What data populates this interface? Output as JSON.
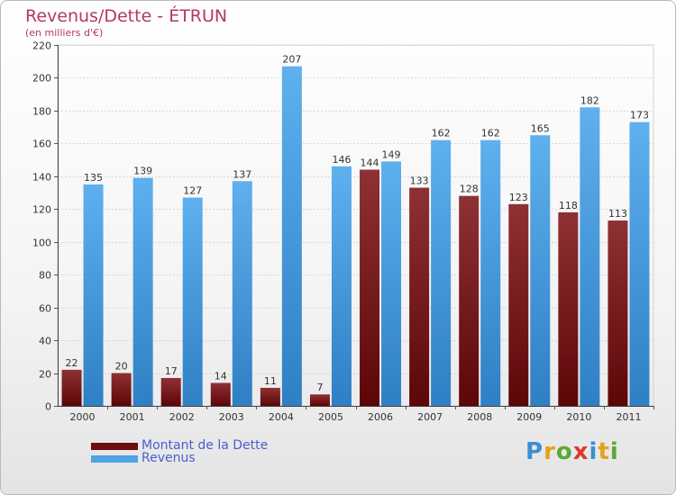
{
  "header": {
    "title": "Revenus/Dette - ÉTRUN",
    "subtitle": "(en milliers d'€)"
  },
  "legend": [
    {
      "label": "Montant de la Dette",
      "color": "#7a1416"
    },
    {
      "label": "Revenus",
      "color": "#4ea4e4"
    }
  ],
  "logo": {
    "letters": [
      "P",
      "r",
      "o",
      "x",
      "i",
      "t",
      "i"
    ]
  },
  "chart_data": {
    "type": "bar",
    "categories": [
      "2000",
      "2001",
      "2002",
      "2003",
      "2004",
      "2005",
      "2006",
      "2007",
      "2008",
      "2009",
      "2010",
      "2011"
    ],
    "series": [
      {
        "name": "Montant de la Dette",
        "color": "#7a1416",
        "values": [
          22,
          20,
          17,
          14,
          11,
          7,
          144,
          133,
          128,
          123,
          118,
          113
        ]
      },
      {
        "name": "Revenus",
        "color": "#4ea4e4",
        "values": [
          135,
          139,
          127,
          137,
          207,
          146,
          149,
          162,
          162,
          165,
          182,
          173
        ]
      }
    ],
    "title": "Revenus/Dette - ÉTRUN",
    "ylabel": "(en milliers d'€)",
    "ylim": [
      0,
      220
    ],
    "yticks": [
      0,
      20,
      40,
      60,
      80,
      100,
      120,
      140,
      160,
      180,
      200,
      220
    ],
    "grid": true,
    "legend_position": "bottom-left"
  }
}
